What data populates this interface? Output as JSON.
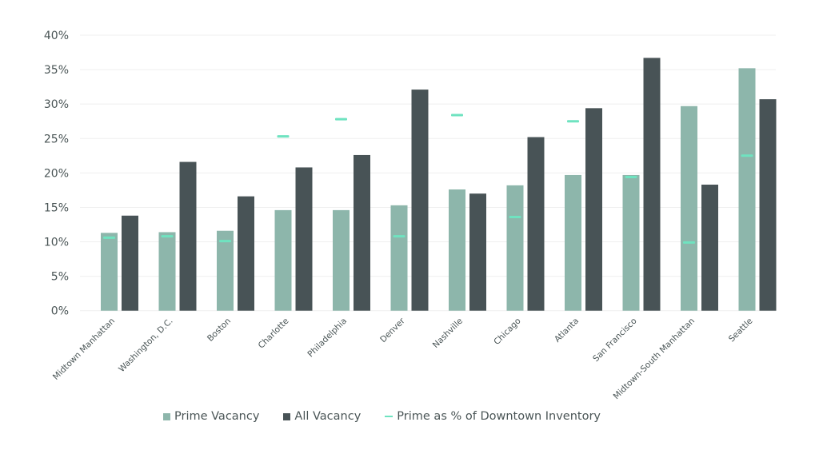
{
  "chart_data": {
    "type": "bar",
    "title": "",
    "xlabel": "",
    "ylabel": "",
    "ylim": [
      0,
      40
    ],
    "yticks": [
      0,
      5,
      10,
      15,
      20,
      25,
      30,
      35,
      40
    ],
    "ytick_labels": [
      "0%",
      "5%",
      "10%",
      "15%",
      "20%",
      "25%",
      "30%",
      "35%",
      "40%"
    ],
    "grid": true,
    "legend_position": "bottom",
    "categories": [
      "Midtown Manhattan",
      "Washington, D.C.",
      "Boston",
      "Charlotte",
      "Philadelphia",
      "Denver",
      "Nashville",
      "Chicago",
      "Atlanta",
      "San Francisco",
      "Midtown-South Manhattan",
      "Seattle"
    ],
    "series": [
      {
        "name": "Prime Vacancy",
        "kind": "bar",
        "color": "#8db6ab",
        "values": [
          11.3,
          11.4,
          11.6,
          14.6,
          14.6,
          15.3,
          17.6,
          18.2,
          19.7,
          19.7,
          29.7,
          35.2
        ]
      },
      {
        "name": "All Vacancy",
        "kind": "bar",
        "color": "#485356",
        "values": [
          13.8,
          21.6,
          16.6,
          20.8,
          22.6,
          32.1,
          17.0,
          25.2,
          29.4,
          36.7,
          18.3,
          30.7
        ]
      },
      {
        "name": "Prime as % of Downtown Inventory",
        "kind": "marker",
        "color": "#6fe3c0",
        "values": [
          10.6,
          10.8,
          10.1,
          25.3,
          27.8,
          10.8,
          28.4,
          13.6,
          27.5,
          19.4,
          9.9,
          22.5
        ]
      }
    ]
  },
  "legend": {
    "items": [
      {
        "label": "Prime Vacancy",
        "color": "#8db6ab",
        "shape": "square"
      },
      {
        "label": "All Vacancy",
        "color": "#485356",
        "shape": "square"
      },
      {
        "label": "Prime as % of Downtown Inventory",
        "color": "#6fe3c0",
        "shape": "line"
      }
    ]
  },
  "colors": {
    "gridline": "#efefef",
    "text": "#4a5556"
  }
}
